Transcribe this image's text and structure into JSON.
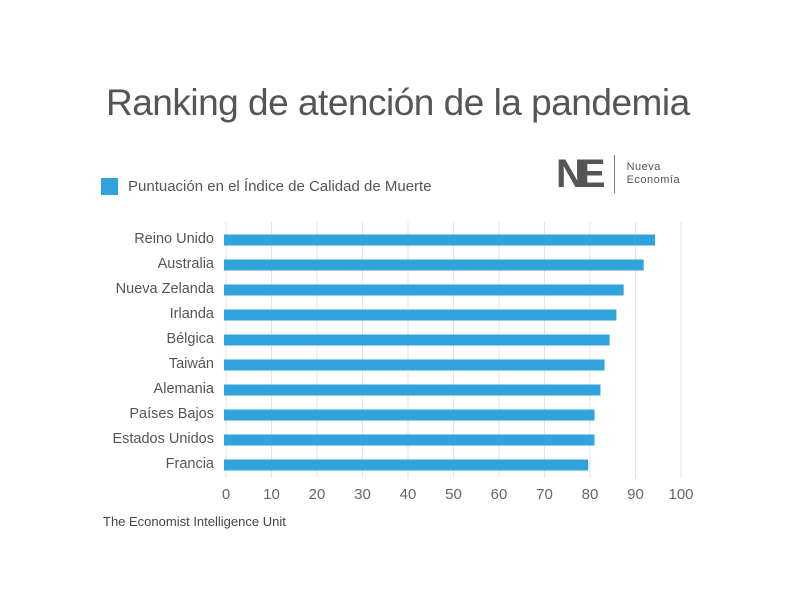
{
  "title": "Ranking de atención de la pandemia",
  "logo": {
    "mark": "NE",
    "line1": "Nueva",
    "line2": "Economía"
  },
  "source": "The Economist Intelligence Unit",
  "chart_data": {
    "type": "bar",
    "orientation": "horizontal",
    "title": "Ranking de atención de la pandemia",
    "legend": [
      "Puntuación en el Índice de Calidad de Muerte"
    ],
    "legend_position": "top-left",
    "color": "#30a3dc",
    "categories": [
      "Reino Unido",
      "Australia",
      "Nueva Zelanda",
      "Irlanda",
      "Bélgica",
      "Taiwán",
      "Alemania",
      "Países Bajos",
      "Estados Unidos",
      "Francia"
    ],
    "values": [
      94.3,
      91.8,
      87.4,
      85.8,
      84.3,
      83.2,
      82.3,
      81.0,
      81.0,
      79.6
    ],
    "xlim": [
      0,
      100
    ],
    "xticks": [
      "0",
      "10",
      "20",
      "30",
      "40",
      "50",
      "60",
      "70",
      "80",
      "90",
      "100"
    ],
    "grid": true
  }
}
